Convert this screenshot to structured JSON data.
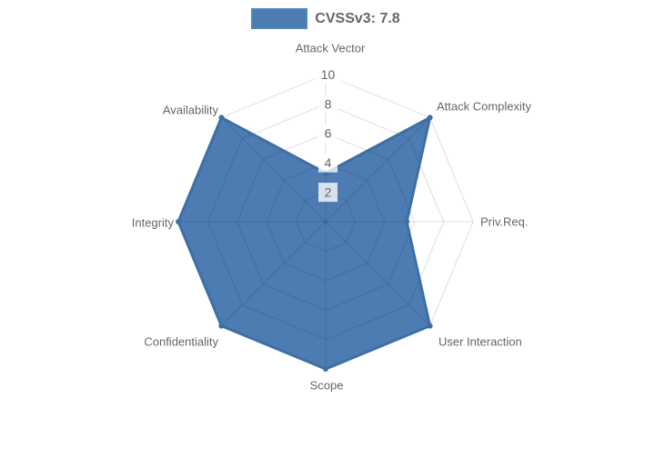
{
  "legend": {
    "label": "CVSSv3: 7.8"
  },
  "chart_data": {
    "type": "radar",
    "categories": [
      "Attack Vector",
      "Attack Complexity",
      "Priv.Req.",
      "User Interaction",
      "Scope",
      "Confidentiality",
      "Integrity",
      "Availability"
    ],
    "series": [
      {
        "name": "CVSSv3: 7.8",
        "values": [
          3.3,
          10,
          5.5,
          10,
          10,
          10,
          10,
          10
        ]
      }
    ],
    "ticks": [
      2,
      4,
      6,
      8,
      10
    ],
    "rlim": [
      0,
      10
    ],
    "grid": "polygonal-web",
    "legend_position": "top",
    "colors": {
      "fill": "#4d7cb2",
      "border": "#3d6fa5",
      "legend_swatch_border": "#5585bd",
      "grid": "rgba(0,0,0,0.13)",
      "tick_text": "#666666",
      "tick_backdrop": "rgba(255,255,255,0.78)",
      "label_text": "#666666"
    }
  }
}
